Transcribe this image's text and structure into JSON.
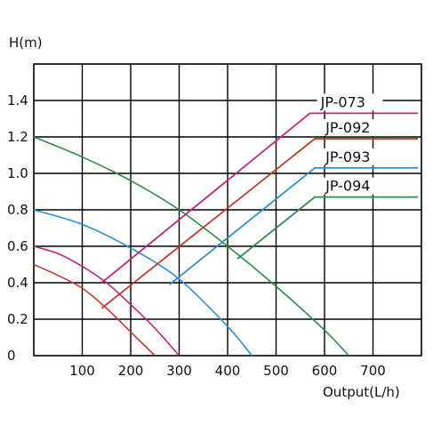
{
  "chart_data": {
    "type": "line",
    "ylabel": "H(m)",
    "xlabel": "Output(L/h)",
    "xlim": [
      0,
      800
    ],
    "ylim": [
      0,
      1.6
    ],
    "x_ticks": [
      100,
      200,
      300,
      400,
      500,
      600,
      700
    ],
    "y_ticks": [
      0,
      0.2,
      0.4,
      0.6,
      0.8,
      1.0,
      1.2,
      1.4
    ],
    "y_tick_labels": [
      "0",
      "0.2",
      "0.4",
      "0.6",
      "0.8",
      "1.0",
      "1.2",
      "1.4"
    ],
    "grid": true,
    "series": [
      {
        "name": "JP-073",
        "color": "#c0257a",
        "x": [
          0,
          50,
          100,
          150,
          200,
          250,
          300
        ],
        "y": [
          0.6,
          0.56,
          0.49,
          0.4,
          0.28,
          0.15,
          0.0
        ]
      },
      {
        "name": "JP-092",
        "color": "#c0392b",
        "x": [
          0,
          50,
          100,
          150,
          200,
          250
        ],
        "y": [
          0.5,
          0.44,
          0.37,
          0.26,
          0.13,
          0.0
        ]
      },
      {
        "name": "JP-093",
        "color": "#2b8fd0",
        "x": [
          0,
          100,
          200,
          300,
          400,
          450
        ],
        "y": [
          0.8,
          0.72,
          0.59,
          0.42,
          0.16,
          0.0
        ]
      },
      {
        "name": "JP-094",
        "color": "#2e8b4a",
        "x": [
          0,
          100,
          200,
          300,
          400,
          500,
          600,
          650
        ],
        "y": [
          1.2,
          1.09,
          0.96,
          0.8,
          0.6,
          0.38,
          0.14,
          0.0
        ]
      }
    ],
    "legend": [
      {
        "name": "JP-073",
        "color": "#c0257a",
        "label_x": 570,
        "label_y": 1.33,
        "point_x": 140,
        "point_y": 0.4
      },
      {
        "name": "JP-092",
        "color": "#c0392b",
        "label_x": 580,
        "label_y": 1.19,
        "point_x": 140,
        "point_y": 0.26
      },
      {
        "name": "JP-093",
        "color": "#2b8fd0",
        "label_x": 580,
        "label_y": 1.03,
        "point_x": 280,
        "point_y": 0.39
      },
      {
        "name": "JP-094",
        "color": "#2e8b4a",
        "label_x": 580,
        "label_y": 0.87,
        "point_x": 420,
        "point_y": 0.53
      }
    ]
  }
}
